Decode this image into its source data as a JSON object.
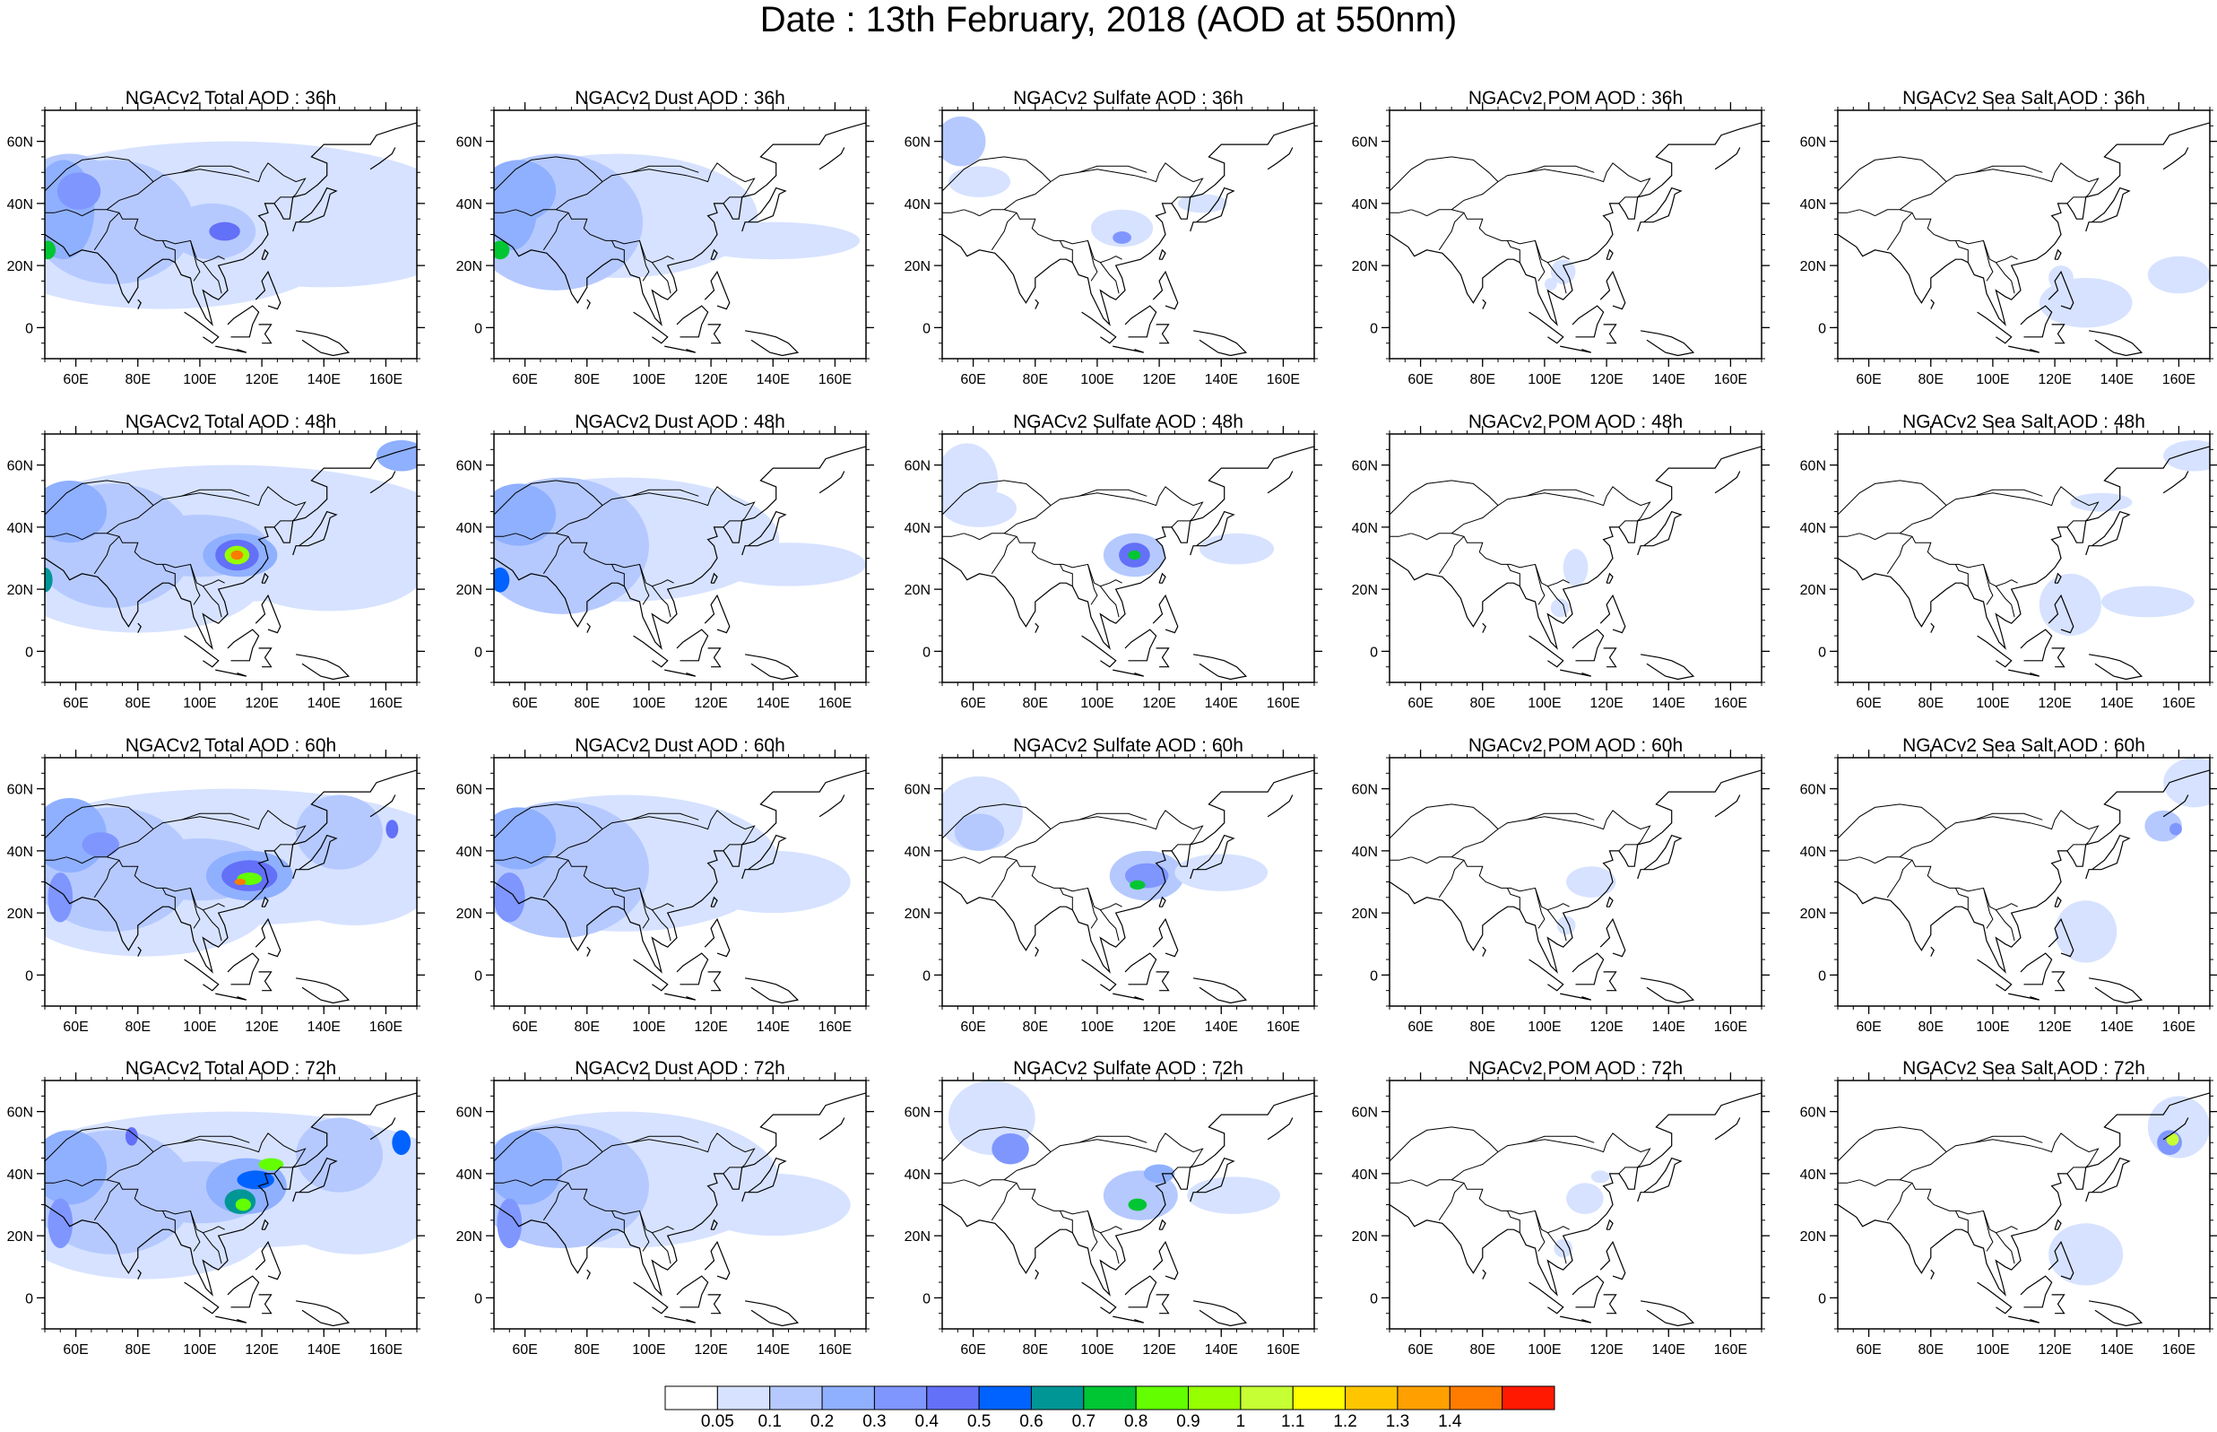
{
  "title": "Date : 13th February, 2018 (AOD at 550nm)",
  "panel_titles": [
    [
      "NGACv2 Total AOD : 36h",
      "NGACv2 Dust AOD : 36h",
      "NGACv2 Sulfate AOD : 36h",
      "NGACv2 POM AOD : 36h",
      "NGACv2 Sea Salt AOD : 36h"
    ],
    [
      "NGACv2 Total AOD : 48h",
      "NGACv2 Dust AOD : 48h",
      "NGACv2 Sulfate AOD : 48h",
      "NGACv2 POM AOD : 48h",
      "NGACv2 Sea Salt AOD : 48h"
    ],
    [
      "NGACv2 Total AOD : 60h",
      "NGACv2 Dust AOD : 60h",
      "NGACv2 Sulfate AOD : 60h",
      "NGACv2 POM AOD : 60h",
      "NGACv2 Sea Salt AOD : 60h"
    ],
    [
      "NGACv2 Total AOD : 72h",
      "NGACv2 Dust AOD : 72h",
      "NGACv2 Sulfate AOD : 72h",
      "NGACv2 POM AOD : 72h",
      "NGACv2 Sea Salt  AOD : 72h"
    ]
  ],
  "map": {
    "lon_range": [
      50,
      170
    ],
    "lat_range": [
      -10,
      70
    ],
    "lon_ticks": [
      60,
      80,
      100,
      120,
      140,
      160
    ],
    "lon_tick_labels": [
      "60E",
      "80E",
      "100E",
      "120E",
      "140E",
      "160E"
    ],
    "lat_ticks": [
      0,
      20,
      40,
      60
    ],
    "lat_tick_labels": [
      "0",
      "20N",
      "40N",
      "60N"
    ]
  },
  "colorbar": {
    "labels": [
      "0.05",
      "0.1",
      "0.2",
      "0.3",
      "0.4",
      "0.5",
      "0.6",
      "0.7",
      "0.8",
      "0.9",
      "1",
      "1.1",
      "1.2",
      "1.3",
      "1.4"
    ],
    "colors": [
      "#ffffff",
      "#d6e2ff",
      "#b5c9ff",
      "#8fb0ff",
      "#7f96ff",
      "#6370f8",
      "#0063ff",
      "#009696",
      "#00c633",
      "#63ff00",
      "#96ff00",
      "#c6ff33",
      "#ffff00",
      "#ffc600",
      "#ffa000",
      "#ff7c00",
      "#ff1900"
    ]
  }
}
